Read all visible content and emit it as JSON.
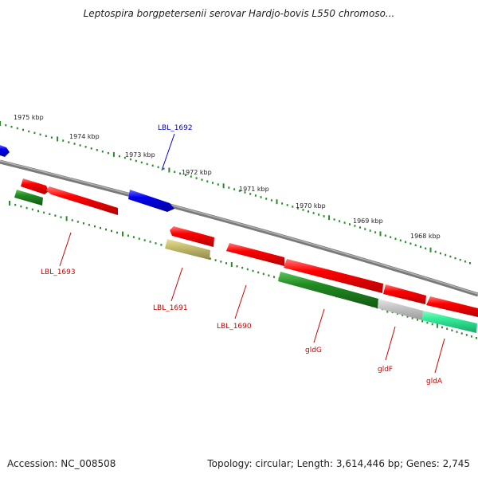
{
  "title": "Leptospira borgpetersenii serovar Hardjo-bovis L550 chromoso...",
  "footer": {
    "accession": "Accession: NC_008508",
    "summary": "Topology: circular; Length: 3,614,446 bp; Genes: 2,745"
  },
  "scale_labels": [
    "1975 kbp",
    "1974 kbp",
    "1973 kbp",
    "1972 kbp",
    "1971 kbp",
    "1970 kbp",
    "1969 kbp",
    "1968 kbp"
  ],
  "gene_labels": {
    "lbl_1692": "LBL_1692",
    "lbl_1693": "LBL_1693",
    "lbl_1691": "LBL_1691",
    "lbl_1690": "LBL_1690",
    "gldG": "gldG",
    "gldF": "gldF",
    "gldA": "gldA"
  },
  "colors": {
    "backbone": "#888888",
    "forward_cds": "#ff0000",
    "reverse_cds": "#228b22",
    "other_cds": "#0000dd",
    "khaki_cds": "#c8c070",
    "grey_cds": "#c8c8c8",
    "aqua_cds": "#33ee99",
    "tick": "#2a8a2a",
    "label_forward": "#cc0000",
    "label_other": "#0000cc"
  }
}
